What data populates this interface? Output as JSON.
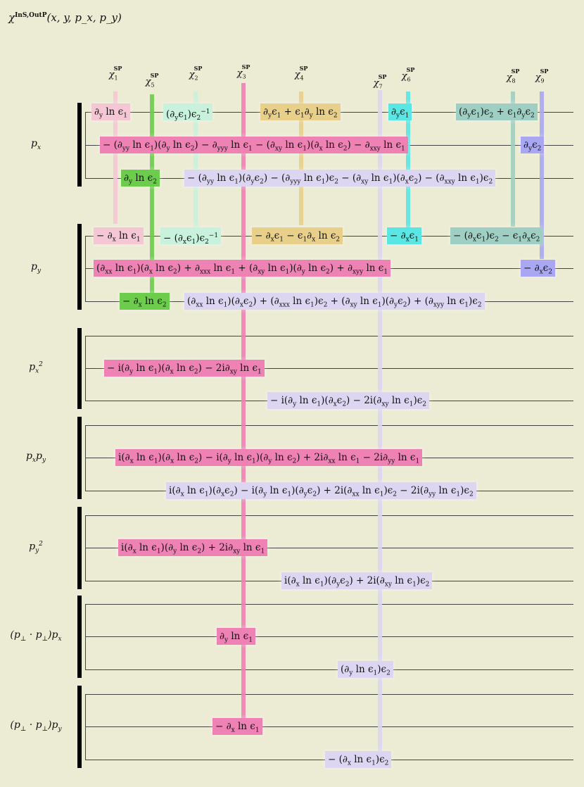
{
  "title": {
    "symbol": "χ",
    "superscript": "InS,OutP",
    "args": "(x, y, p_x, p_y)"
  },
  "colors": {
    "chi1": "#f5c6d4",
    "chi2": "#c8f2dc",
    "chi3": "#ee82b4",
    "chi4": "#e8cf8a",
    "chi5": "#6ccc4c",
    "chi6": "#5ae6e2",
    "chi7": "#ddd6f2",
    "chi8": "#9fcfc2",
    "chi9": "#a9a7f2"
  },
  "columns": [
    {
      "id": "chi1",
      "base": "χ",
      "sub": "1",
      "sup": "SP"
    },
    {
      "id": "chi5",
      "base": "χ",
      "sub": "5",
      "sup": "SP"
    },
    {
      "id": "chi2",
      "base": "χ",
      "sub": "2",
      "sup": "SP"
    },
    {
      "id": "chi3",
      "base": "χ",
      "sub": "3",
      "sup": "SP"
    },
    {
      "id": "chi4",
      "base": "χ",
      "sub": "4",
      "sup": "SP"
    },
    {
      "id": "chi7",
      "base": "χ",
      "sub": "7",
      "sup": "SP"
    },
    {
      "id": "chi6",
      "base": "χ",
      "sub": "6",
      "sup": "SP"
    },
    {
      "id": "chi8",
      "base": "χ",
      "sub": "8",
      "sup": "SP"
    },
    {
      "id": "chi9",
      "base": "χ",
      "sub": "9",
      "sup": "SP"
    }
  ],
  "groups": [
    {
      "label": "p_x",
      "terms": [
        {
          "col": "chi1",
          "text": "∂y ln ϵ1"
        },
        {
          "col": "chi2",
          "text": "(∂yϵ1)ϵ2^−1"
        },
        {
          "col": "chi4",
          "text": "∂yϵ1 + ϵ1∂y ln ϵ2"
        },
        {
          "col": "chi6",
          "text": "∂yϵ1"
        },
        {
          "col": "chi8",
          "text": "(∂yϵ1)ϵ2 + ϵ1∂yϵ2"
        },
        {
          "col": "chi3",
          "text": "− (∂yy ln ϵ1)(∂y ln ϵ2) − ∂yyy ln ϵ1 − (∂xy ln ϵ1)(∂x ln ϵ2) − ∂xxy ln ϵ1"
        },
        {
          "col": "chi9",
          "text": "∂yϵ2"
        },
        {
          "col": "chi5",
          "text": "∂y ln ϵ2"
        },
        {
          "col": "chi7",
          "text": "− (∂yy ln ϵ1)(∂yϵ2) − (∂yyy ln ϵ1)ϵ2 − (∂xy ln ϵ1)(∂xϵ2) − (∂xxy ln ϵ1)ϵ2"
        }
      ]
    },
    {
      "label": "p_y",
      "terms": [
        {
          "col": "chi1",
          "text": "− ∂x ln ϵ1"
        },
        {
          "col": "chi2",
          "text": "− (∂xϵ1)ϵ2^−1"
        },
        {
          "col": "chi4",
          "text": "− ∂xϵ1 − ϵ1∂x ln ϵ2"
        },
        {
          "col": "chi6",
          "text": "− ∂xϵ1"
        },
        {
          "col": "chi8",
          "text": "− (∂xϵ1)ϵ2 − ϵ1∂xϵ2"
        },
        {
          "col": "chi3",
          "text": "(∂xx ln ϵ1)(∂x ln ϵ2) + ∂xxx ln ϵ1 + (∂xy ln ϵ1)(∂y ln ϵ2) + ∂xyy ln ϵ1"
        },
        {
          "col": "chi9",
          "text": "− ∂xϵ2"
        },
        {
          "col": "chi5",
          "text": "− ∂x ln ϵ2"
        },
        {
          "col": "chi7",
          "text": "(∂xx ln ϵ1)(∂xϵ2) + (∂xxx ln ϵ1)ϵ2 + (∂xy ln ϵ1)(∂yϵ2) + (∂xyy ln ϵ1)ϵ2"
        }
      ]
    },
    {
      "label": "p_x^2",
      "terms": [
        {
          "col": "chi3",
          "text": "− i(∂y ln ϵ1)(∂x ln ϵ2) − 2i∂xy ln ϵ1"
        },
        {
          "col": "chi7",
          "text": "− i(∂y ln ϵ1)(∂xϵ2) − 2i(∂xy ln ϵ1)ϵ2"
        }
      ]
    },
    {
      "label": "p_xp_y",
      "terms": [
        {
          "col": "chi3",
          "text": "i(∂x ln ϵ1)(∂x ln ϵ2) − i(∂y ln ϵ1)(∂y ln ϵ2) + 2i∂xx ln ϵ1 − 2i∂yy ln ϵ1"
        },
        {
          "col": "chi7",
          "text": "i(∂x ln ϵ1)(∂xϵ2) − i(∂y ln ϵ1)(∂yϵ2) + 2i(∂xx ln ϵ1)ϵ2 − 2i(∂yy ln ϵ1)ϵ2"
        }
      ]
    },
    {
      "label": "p_y^2",
      "terms": [
        {
          "col": "chi3",
          "text": "i(∂x ln ϵ1)(∂y ln ϵ2) + 2i∂xy ln ϵ1"
        },
        {
          "col": "chi7",
          "text": "i(∂x ln ϵ1)(∂yϵ2) + 2i(∂xy ln ϵ1)ϵ2"
        }
      ]
    },
    {
      "label": "(p⊥ · p⊥)p_x",
      "terms": [
        {
          "col": "chi3",
          "text": "∂y ln ϵ1"
        },
        {
          "col": "chi7",
          "text": "(∂y ln ϵ1)ϵ2"
        }
      ]
    },
    {
      "label": "(p⊥ · p⊥)p_y",
      "terms": [
        {
          "col": "chi3",
          "text": "− ∂x ln ϵ1"
        },
        {
          "col": "chi7",
          "text": "− (∂x ln ϵ1)ϵ2"
        }
      ]
    }
  ]
}
